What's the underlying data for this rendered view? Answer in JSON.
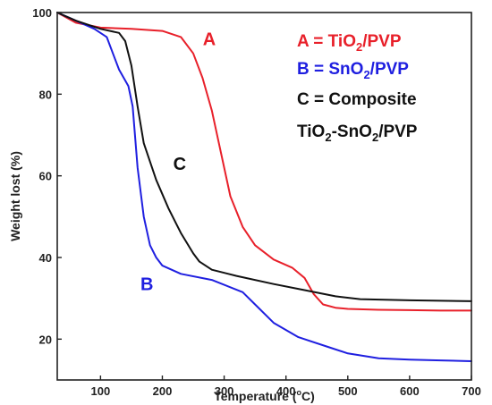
{
  "chart_data": {
    "type": "line",
    "title": "",
    "xlabel_main": "Temperature (",
    "xlabel_deg": "o",
    "xlabel_unit": "C)",
    "ylabel": "Weight lost (%)",
    "xlim": [
      30,
      700
    ],
    "ylim": [
      10,
      100
    ],
    "x_ticks": [
      100,
      200,
      300,
      400,
      500,
      600,
      700
    ],
    "y_ticks": [
      20,
      40,
      60,
      80,
      100
    ],
    "grid": false,
    "legend_position": "top-right",
    "legend": [
      {
        "key": "A",
        "color": "#e8202a",
        "parts": [
          {
            "t": "A = TiO"
          },
          {
            "t": "2",
            "sub": true
          },
          {
            "t": "/PVP"
          }
        ]
      },
      {
        "key": "B",
        "color": "#1f1fe0",
        "parts": [
          {
            "t": "B = SnO"
          },
          {
            "t": "2",
            "sub": true
          },
          {
            "t": "/PVP"
          }
        ]
      },
      {
        "key": "C",
        "color": "#111111",
        "parts": [
          {
            "t": "C = Composite"
          }
        ]
      },
      {
        "key": "C2",
        "color": "#111111",
        "parts": [
          {
            "t": "TiO"
          },
          {
            "t": "2",
            "sub": true
          },
          {
            "t": "-SnO"
          },
          {
            "t": "2",
            "sub": true
          },
          {
            "t": "/PVP"
          }
        ]
      }
    ],
    "series": [
      {
        "key": "A",
        "color": "#e8202a",
        "label_x": 276,
        "label_y": 92,
        "x": [
          30,
          60,
          100,
          150,
          200,
          230,
          250,
          265,
          280,
          290,
          300,
          310,
          330,
          350,
          380,
          410,
          430,
          445,
          460,
          480,
          500,
          550,
          600,
          650,
          700
        ],
        "y": [
          100,
          97.5,
          96.3,
          96,
          95.5,
          94,
          90,
          84,
          76,
          69,
          62,
          55,
          47.5,
          43,
          39.5,
          37.5,
          35,
          31,
          28.5,
          27.7,
          27.4,
          27.2,
          27.1,
          27.0,
          27.0
        ]
      },
      {
        "key": "B",
        "color": "#1f1fe0",
        "label_x": 175,
        "label_y": 32,
        "x": [
          30,
          60,
          90,
          110,
          120,
          130,
          145,
          152,
          160,
          170,
          180,
          190,
          200,
          230,
          280,
          330,
          350,
          380,
          420,
          470,
          500,
          550,
          600,
          650,
          700
        ],
        "y": [
          100,
          98,
          96,
          94,
          90,
          86,
          82,
          77,
          62,
          50,
          43,
          40,
          38,
          36,
          34.5,
          31.5,
          28.5,
          24,
          20.5,
          18,
          16.5,
          15.3,
          15.0,
          14.8,
          14.6
        ]
      },
      {
        "key": "C",
        "color": "#111111",
        "label_x": 228,
        "label_y": 61.5,
        "x": [
          30,
          60,
          100,
          130,
          140,
          150,
          160,
          170,
          190,
          210,
          230,
          250,
          260,
          280,
          320,
          380,
          430,
          480,
          520,
          600,
          700
        ],
        "y": [
          100,
          98,
          96,
          95,
          93,
          87,
          77,
          68,
          59,
          52,
          46,
          41,
          39,
          37,
          35.5,
          33.5,
          32,
          30.5,
          29.8,
          29.5,
          29.3
        ]
      }
    ]
  }
}
